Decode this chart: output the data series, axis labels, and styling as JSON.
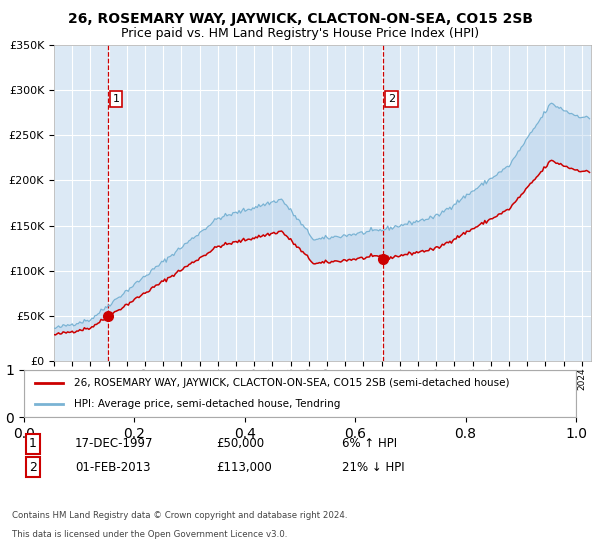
{
  "title": "26, ROSEMARY WAY, JAYWICK, CLACTON-ON-SEA, CO15 2SB",
  "subtitle": "Price paid vs. HM Land Registry's House Price Index (HPI)",
  "legend_line1": "26, ROSEMARY WAY, JAYWICK, CLACTON-ON-SEA, CO15 2SB (semi-detached house)",
  "legend_line2": "HPI: Average price, semi-detached house, Tendring",
  "annotation1_date": "17-DEC-1997",
  "annotation1_price": "£50,000",
  "annotation1_hpi": "6% ↑ HPI",
  "annotation2_date": "01-FEB-2013",
  "annotation2_price": "£113,000",
  "annotation2_hpi": "21% ↓ HPI",
  "footnote1": "Contains HM Land Registry data © Crown copyright and database right 2024.",
  "footnote2": "This data is licensed under the Open Government Licence v3.0.",
  "sale1_year": 1997.96,
  "sale1_price": 50000,
  "sale2_year": 2013.08,
  "sale2_price": 113000,
  "ylim": [
    0,
    350000
  ],
  "xlim_start": 1995.0,
  "xlim_end": 2024.5,
  "background_color": "#dce9f5",
  "grid_color": "#ffffff",
  "red_line_color": "#cc0000",
  "blue_line_color": "#7ab3d4",
  "vline_color": "#cc0000",
  "title_fontsize": 10,
  "subtitle_fontsize": 9
}
